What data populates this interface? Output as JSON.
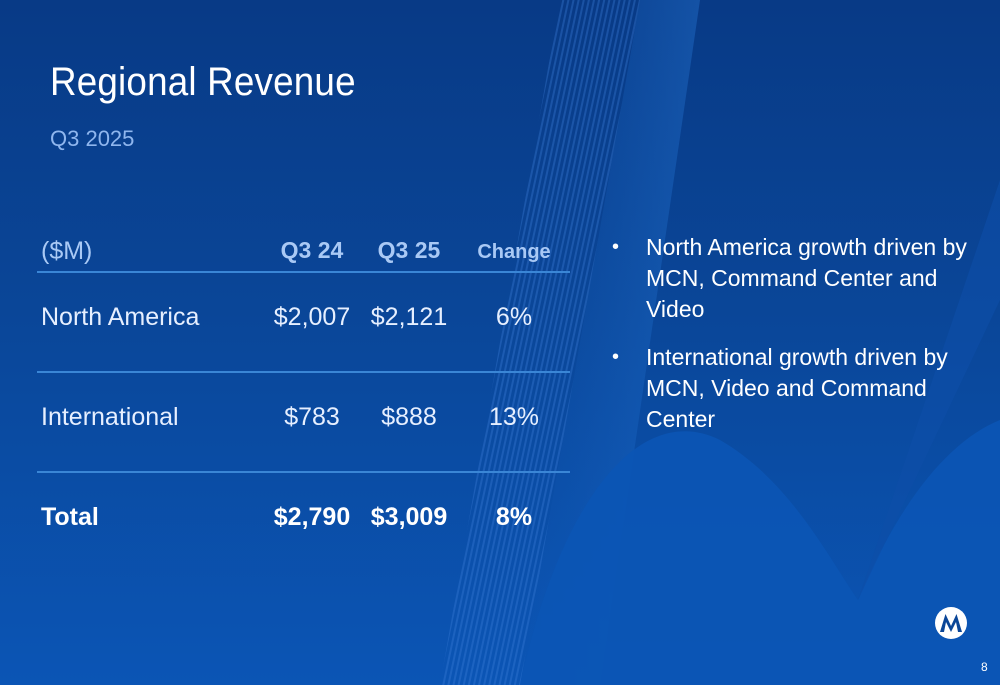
{
  "slide": {
    "title": "Regional Revenue",
    "subtitle": "Q3 2025",
    "page_number": "8"
  },
  "table": {
    "headers": {
      "label": "($M)",
      "q3_24": "Q3 24",
      "q3_25": "Q3 25",
      "change": "Change"
    },
    "rows": [
      {
        "label": "North America",
        "q3_24": "$2,007",
        "q3_25": "$2,121",
        "change": "6%"
      },
      {
        "label": "International",
        "q3_24": "$783",
        "q3_25": "$888",
        "change": "13%"
      },
      {
        "label": "Total",
        "q3_24": "$2,790",
        "q3_25": "$3,009",
        "change": "8%"
      }
    ]
  },
  "bullets": [
    "North America growth driven by MCN, Command Center and Video",
    "International growth driven by MCN, Video and Command Center"
  ],
  "bullet_glyph": "•",
  "logo": {
    "icon": "motorola-m-logo-icon"
  },
  "colors": {
    "background": "#0a4698",
    "subtitle": "#8fb6ee",
    "divider": "#3a86d6",
    "header_text": "#a9c9f5"
  }
}
